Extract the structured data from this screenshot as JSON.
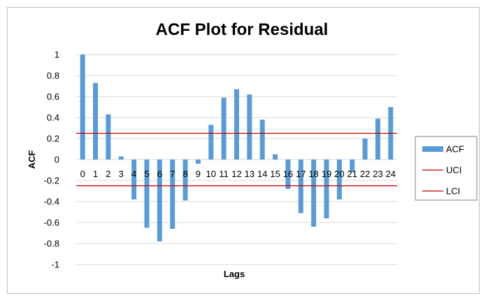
{
  "chart_data": {
    "type": "bar",
    "title": "ACF Plot for Residual",
    "xlabel": "Lags",
    "ylabel": "ACF",
    "ylim": [
      -1,
      1
    ],
    "yticks": [
      "1",
      "0.8",
      "0.6",
      "0.4",
      "0.2",
      "0",
      "-0.2",
      "-0.4",
      "-0.6",
      "-0.8",
      "-1"
    ],
    "grid": "horizontal",
    "legend_position": "right",
    "categories": [
      "0",
      "1",
      "2",
      "3",
      "4",
      "5",
      "6",
      "7",
      "8",
      "9",
      "10",
      "11",
      "12",
      "13",
      "14",
      "15",
      "16",
      "17",
      "18",
      "19",
      "20",
      "21",
      "22",
      "23",
      "24"
    ],
    "series": [
      {
        "name": "ACF",
        "type": "bar",
        "color": "#5b9bd5",
        "values": [
          1.0,
          0.73,
          0.43,
          0.03,
          -0.38,
          -0.65,
          -0.78,
          -0.66,
          -0.39,
          -0.04,
          0.33,
          0.59,
          0.67,
          0.62,
          0.38,
          0.05,
          -0.28,
          -0.51,
          -0.64,
          -0.56,
          -0.38,
          -0.12,
          0.2,
          0.39,
          0.5
        ]
      },
      {
        "name": "UCI",
        "type": "line",
        "color": "#c00000",
        "value": 0.25
      },
      {
        "name": "LCI",
        "type": "line",
        "color": "#c00000",
        "value": -0.25
      }
    ]
  }
}
